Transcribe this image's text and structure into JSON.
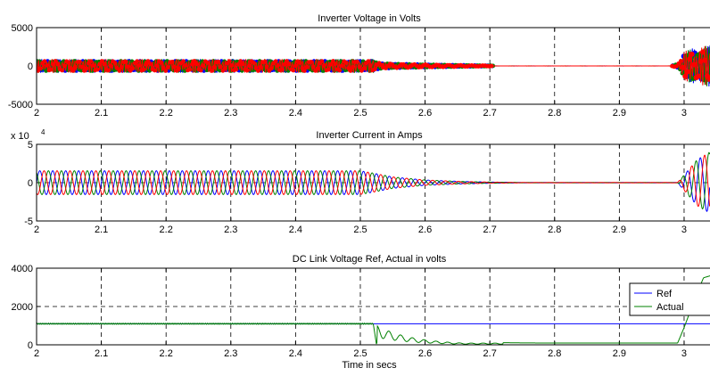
{
  "chart_data": [
    {
      "type": "line",
      "title": "Inverter Voltage in Volts",
      "xlabel": "",
      "ylabel": "",
      "xlim": [
        2,
        3.04
      ],
      "ylim": [
        -5000,
        5000
      ],
      "x_ticks": [
        "2",
        "2.1",
        "2.2",
        "2.3",
        "2.4",
        "2.5",
        "2.6",
        "2.7",
        "2.8",
        "2.9",
        "3"
      ],
      "y_ticks": [
        "5000",
        "0",
        "-5000"
      ],
      "grid": "dashed",
      "series_colors": [
        "#0000ff",
        "#008000",
        "#ff0000"
      ],
      "envelope": {
        "x": [
          2.0,
          2.52,
          2.53,
          2.55,
          2.6,
          2.65,
          2.7,
          2.71,
          2.98,
          2.99,
          3.0,
          3.02,
          3.04
        ],
        "amplitude": [
          900,
          900,
          500,
          380,
          260,
          150,
          60,
          8,
          8,
          300,
          1900,
          2500,
          2700
        ]
      },
      "marker_style": "dense filled markers"
    },
    {
      "type": "line",
      "title": "Inverter Current in Amps",
      "exponent_label": "x 10",
      "exponent_power": "4",
      "xlabel": "",
      "ylabel": "",
      "xlim": [
        2,
        3.04
      ],
      "ylim": [
        -5,
        5
      ],
      "x_ticks": [
        "2",
        "2.1",
        "2.2",
        "2.3",
        "2.4",
        "2.5",
        "2.6",
        "2.7",
        "2.8",
        "2.9",
        "3"
      ],
      "y_ticks": [
        "5",
        "0",
        "-5"
      ],
      "grid": "dashed",
      "series_colors": [
        "#0000ff",
        "#008000",
        "#ff0000"
      ],
      "frequency_hz": 50,
      "envelope": {
        "x": [
          2.0,
          2.5,
          2.52,
          2.55,
          2.6,
          2.65,
          2.7,
          2.75,
          2.99,
          3.0,
          3.02,
          3.04
        ],
        "amplitude": [
          1.55,
          1.55,
          1.25,
          0.75,
          0.35,
          0.18,
          0.08,
          0.03,
          0.03,
          1.0,
          3.0,
          4.0
        ]
      }
    },
    {
      "type": "line",
      "title": "DC Link Voltage Ref, Actual in volts",
      "xlabel": "Time in secs",
      "ylabel": "",
      "xlim": [
        2,
        3.04
      ],
      "ylim": [
        0,
        4000
      ],
      "x_ticks": [
        "2",
        "2.1",
        "2.2",
        "2.3",
        "2.4",
        "2.5",
        "2.6",
        "2.7",
        "2.8",
        "2.9",
        "3"
      ],
      "y_ticks": [
        "4000",
        "2000",
        "0"
      ],
      "grid": "dashed",
      "legend_position": "right",
      "series": [
        {
          "name": "Ref",
          "color": "#0000ff",
          "x": [
            2.0,
            2.52,
            2.521,
            3.04
          ],
          "y": [
            1100,
            1100,
            1100,
            1100
          ]
        },
        {
          "name": "Actual",
          "color": "#008000",
          "x": [
            2.0,
            2.1,
            2.2,
            2.3,
            2.4,
            2.52,
            2.525,
            2.53,
            2.55,
            2.57,
            2.6,
            2.63,
            2.66,
            2.7,
            2.75,
            2.8,
            2.9,
            2.99,
            3.0,
            3.01,
            3.02,
            3.03,
            3.04
          ],
          "y": [
            1100,
            1100,
            1100,
            1100,
            1100,
            1100,
            0,
            1000,
            350,
            650,
            250,
            380,
            150,
            120,
            100,
            90,
            90,
            90,
            900,
            1800,
            2700,
            3500,
            3600
          ]
        }
      ]
    }
  ]
}
